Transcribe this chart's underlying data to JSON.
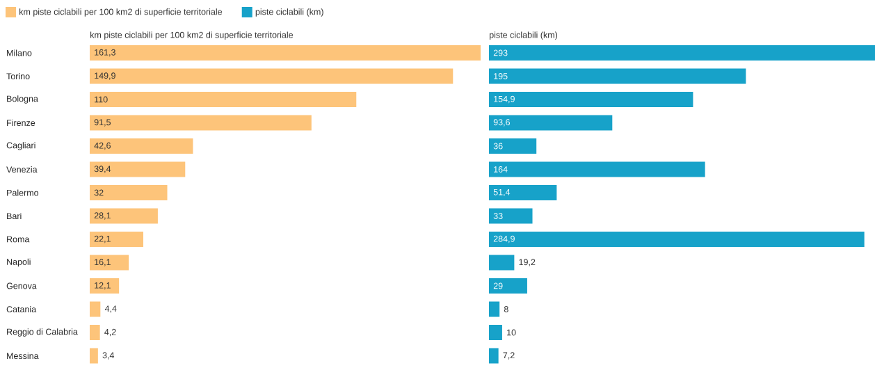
{
  "chart_data": [
    {
      "type": "bar",
      "orientation": "horizontal",
      "title": "km piste ciclabili per 100 km2 di superficie territoriale",
      "legend": "top left",
      "tick_labels": "y",
      "categories": [
        "Milano",
        "Torino",
        "Bologna",
        "Firenze",
        "Cagliari",
        "Venezia",
        "Palermo",
        "Bari",
        "Roma",
        "Napoli",
        "Genova",
        "Catania",
        "Reggio di Calabria",
        "Messina"
      ],
      "series": [
        {
          "name": "km piste ciclabili per 100 km2 di superficie territoriale",
          "color": "#fdc47a",
          "values": [
            161.3,
            149.9,
            110,
            91.5,
            42.6,
            39.4,
            32,
            28.1,
            22.1,
            16.1,
            12.1,
            4.4,
            4.2,
            3.4
          ],
          "value_labels": [
            "161,3",
            "149,9",
            "110",
            "91,5",
            "42,6",
            "39,4",
            "32",
            "28,1",
            "22,1",
            "16,1",
            "12,1",
            "4,4",
            "4,2",
            "3,4"
          ]
        }
      ]
    },
    {
      "type": "bar",
      "orientation": "horizontal",
      "title": "piste ciclabili (km)",
      "legend": "top left",
      "tick_labels": false,
      "categories": [
        null,
        null,
        null,
        null,
        null,
        null,
        null,
        null,
        null,
        null,
        null,
        null,
        null,
        null
      ],
      "series": [
        {
          "name": "piste ciclabili (km)",
          "color": "#17a2c9",
          "values": [
            293,
            195,
            154.9,
            93.6,
            36,
            164,
            51.4,
            33,
            284.9,
            19.2,
            29,
            8,
            10,
            7.2
          ],
          "value_labels": [
            "293",
            "195",
            "154,9",
            "93,6",
            "36",
            "164",
            "51,4",
            "33",
            "284,9",
            "19,2",
            "29",
            "8",
            "10",
            "7,2"
          ]
        }
      ]
    }
  ]
}
